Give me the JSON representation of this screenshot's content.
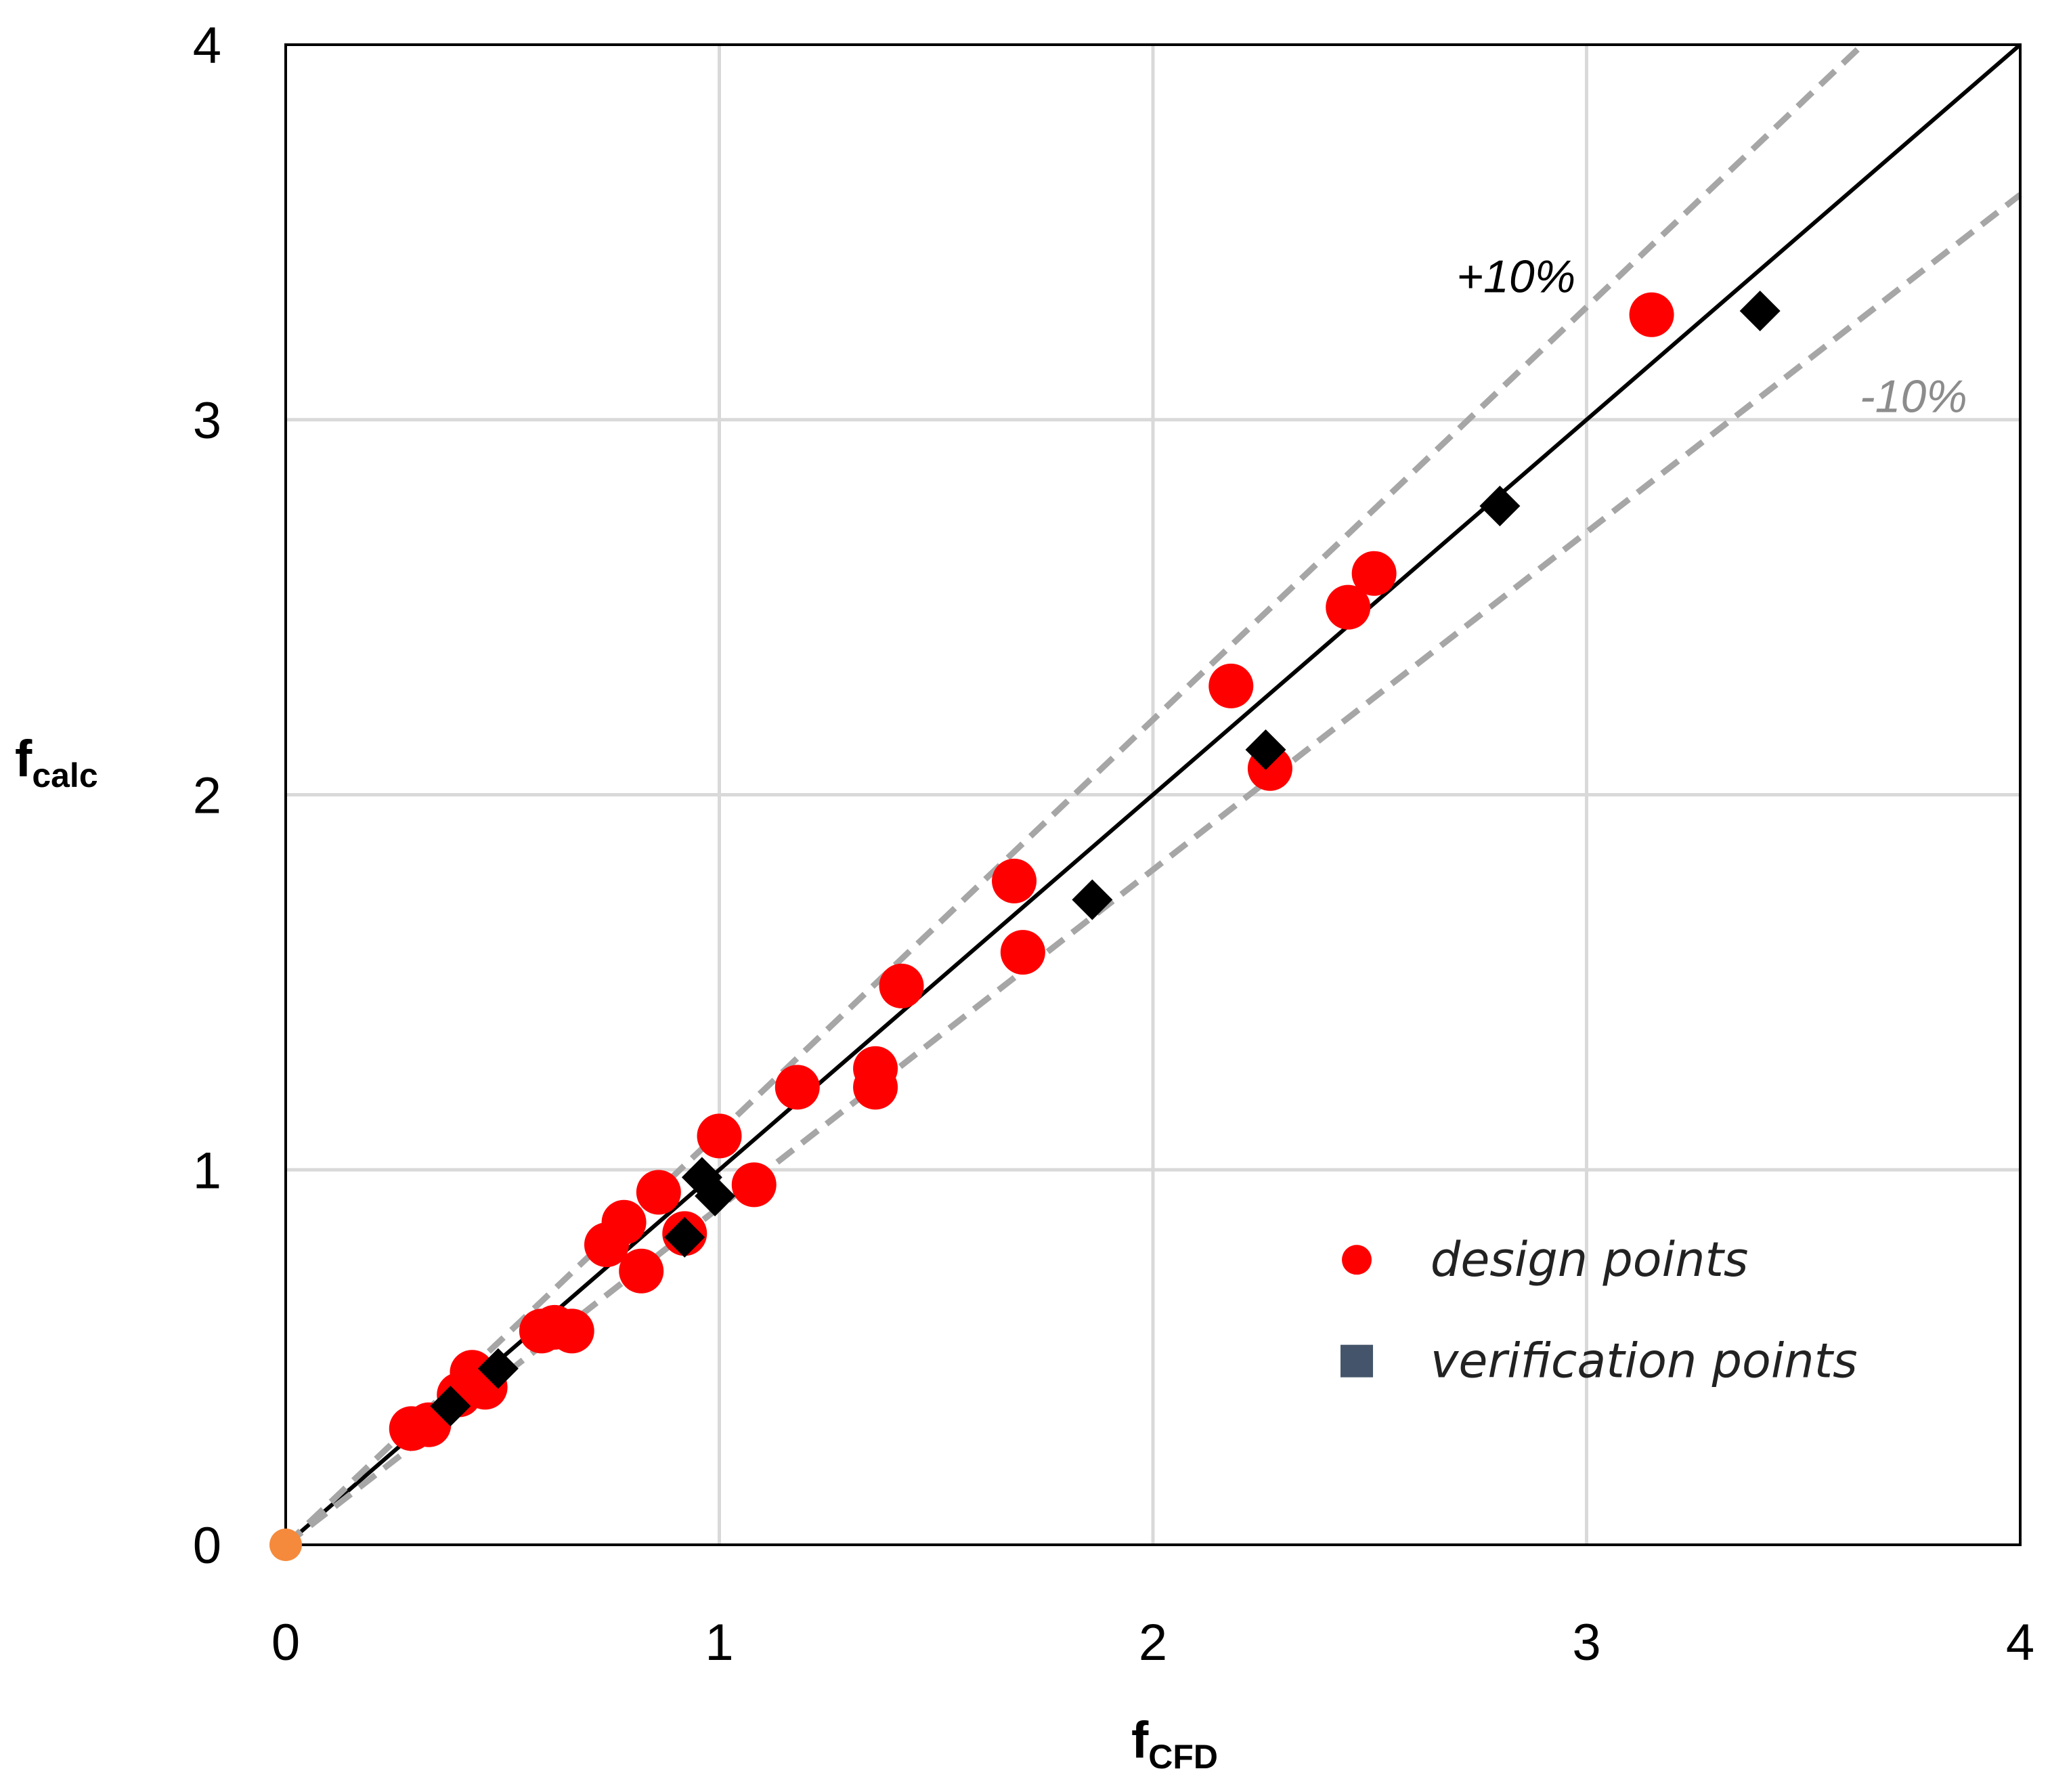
{
  "chart_data": {
    "type": "scatter",
    "xlabel": "f",
    "xlabel_sub": "CFD",
    "ylabel": "f",
    "ylabel_sub": "calc",
    "xlim": [
      0,
      4
    ],
    "ylim": [
      0,
      4
    ],
    "xticks": [
      "0",
      "1",
      "2",
      "3",
      "4"
    ],
    "yticks": [
      "0",
      "1",
      "2",
      "3",
      "4"
    ],
    "grid": true,
    "reference_lines": [
      {
        "name": "identity",
        "slope": 1.0,
        "style": "solid",
        "color": "#000000"
      },
      {
        "name": "plus_10",
        "slope": 1.1,
        "style": "dashed",
        "color": "#a6a6a6",
        "label": "+10%",
        "label_color": "#000000"
      },
      {
        "name": "minus_10",
        "slope": 0.9,
        "style": "dashed",
        "color": "#a6a6a6",
        "label": "-10%",
        "label_color": "#8c8c8c"
      }
    ],
    "series": [
      {
        "name": "design points",
        "marker": "circle",
        "color": "#ff0000",
        "points": [
          [
            0.29,
            0.31
          ],
          [
            0.33,
            0.32
          ],
          [
            0.4,
            0.4
          ],
          [
            0.43,
            0.46
          ],
          [
            0.46,
            0.42
          ],
          [
            0.59,
            0.57
          ],
          [
            0.62,
            0.58
          ],
          [
            0.66,
            0.57
          ],
          [
            0.74,
            0.8
          ],
          [
            0.78,
            0.86
          ],
          [
            0.82,
            0.73
          ],
          [
            0.86,
            0.94
          ],
          [
            0.92,
            0.83
          ],
          [
            1.0,
            1.09
          ],
          [
            1.08,
            0.96
          ],
          [
            1.18,
            1.22
          ],
          [
            1.36,
            1.27
          ],
          [
            1.36,
            1.22
          ],
          [
            1.42,
            1.49
          ],
          [
            1.68,
            1.77
          ],
          [
            1.7,
            1.58
          ],
          [
            2.18,
            2.29
          ],
          [
            2.27,
            2.07
          ],
          [
            2.45,
            2.5
          ],
          [
            2.51,
            2.59
          ],
          [
            3.15,
            3.28
          ]
        ]
      },
      {
        "name": "verification points",
        "marker": "diamond",
        "color": "#000000",
        "legend_color": "#44546a",
        "points": [
          [
            0.38,
            0.37
          ],
          [
            0.49,
            0.47
          ],
          [
            0.92,
            0.82
          ],
          [
            0.96,
            0.98
          ],
          [
            0.99,
            0.93
          ],
          [
            1.86,
            1.72
          ],
          [
            2.26,
            2.12
          ],
          [
            2.8,
            2.77
          ],
          [
            3.4,
            3.29
          ]
        ]
      }
    ],
    "origin_point": {
      "x": 0,
      "y": 0,
      "color": "#f58a3c"
    },
    "legend_position": "bottom-right"
  }
}
